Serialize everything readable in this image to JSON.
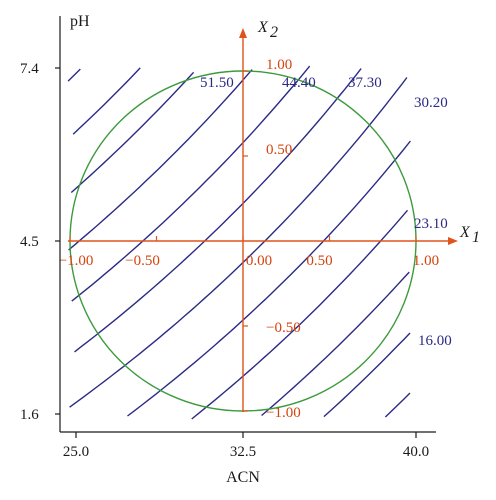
{
  "chart_data": {
    "type": "contour",
    "xlabel": "ACN",
    "ylabel": "pH",
    "x_ticks": [
      "25.0",
      "32.5",
      "40.0"
    ],
    "x_tick_values": [
      25.0,
      32.5,
      40.0
    ],
    "y_ticks": [
      "7.4",
      "4.5",
      "1.6"
    ],
    "y_tick_values": [
      7.4,
      4.5,
      1.6
    ],
    "xlim": [
      25.0,
      40.0
    ],
    "ylim": [
      1.6,
      7.4
    ],
    "coded_axes": {
      "x_title": "X",
      "x_sub": "1",
      "y_title": "X",
      "y_sub": "2",
      "x_ticks": [
        "−1.00",
        "−0.50",
        "0.00",
        "0.50",
        "1.00"
      ],
      "x_tick_values": [
        -1.0,
        -0.5,
        0.0,
        0.5,
        1.0
      ],
      "y_ticks": [
        "1.00",
        "0.50",
        "−0.50",
        "−1.00"
      ],
      "y_tick_values": [
        1.0,
        0.5,
        -0.5,
        -1.0
      ]
    },
    "contour_labels": [
      "51.50",
      "44.40",
      "37.30",
      "30.20",
      "23.10",
      "16.00"
    ],
    "contour_levels": [
      51.5,
      44.4,
      37.3,
      30.2,
      23.1,
      16.0
    ],
    "contour_count": 15,
    "design_region": "circle of radius 1 in coded units",
    "colors": {
      "contour": "#2b2b86",
      "circle": "#3d9a3d",
      "coded_axes": "#e0531a",
      "coded_ticks": "#d4440f",
      "frame": "#1a1a1a"
    }
  }
}
